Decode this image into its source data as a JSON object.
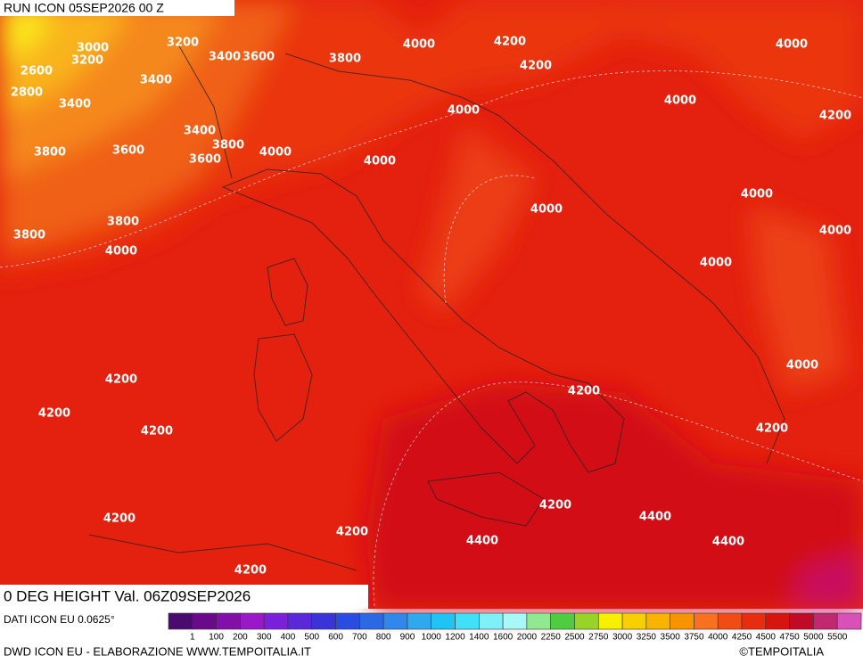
{
  "header": {
    "run": "RUN ICON 05SEP2026 00 Z"
  },
  "map": {
    "title": "0 DEG HEIGHT Val. 06Z09SEP2026",
    "contour_labels": [
      "3000",
      "3200",
      "2600",
      "3200",
      "3400",
      "3600",
      "3400",
      "2800",
      "3400",
      "3400",
      "3800",
      "3800",
      "3600",
      "3600",
      "4000",
      "3800",
      "4000",
      "4200",
      "4200",
      "4000",
      "4000",
      "4200",
      "4000",
      "4000",
      "3800",
      "3800",
      "4000",
      "4000",
      "4000",
      "4000",
      "4000",
      "4000",
      "4200",
      "4200",
      "4200",
      "4200",
      "4200",
      "4200",
      "4400",
      "4200",
      "4200",
      "4400",
      "4400",
      "4200"
    ]
  },
  "legend": {
    "source": "DATI ICON EU 0.0625°",
    "colors": [
      "#4b0a6e",
      "#6a0a8a",
      "#8010a8",
      "#9a18c8",
      "#7a20d8",
      "#5a28d8",
      "#3a34d8",
      "#2a4ce0",
      "#2a68e4",
      "#3088ec",
      "#30a8f0",
      "#20c4f4",
      "#40e0f8",
      "#80f0f8",
      "#a8f8f8",
      "#90e890",
      "#50cc40",
      "#98d428",
      "#f8f000",
      "#f8d000",
      "#f8b400",
      "#f89400",
      "#f87020",
      "#f04c14",
      "#e82c10",
      "#d81410",
      "#c00a28",
      "#c02870",
      "#d850b8"
    ],
    "labels": [
      "1",
      "100",
      "200",
      "300",
      "400",
      "500",
      "600",
      "700",
      "800",
      "900",
      "1000",
      "1200",
      "1400",
      "1600",
      "2000",
      "2250",
      "2500",
      "2750",
      "3000",
      "3250",
      "3500",
      "3750",
      "4000",
      "4250",
      "4500",
      "4750",
      "5000",
      "5500"
    ]
  },
  "footer": {
    "credit": "DWD ICON EU - ELABORAZIONE WWW.TEMPOITALIA.IT",
    "copyright": "©TEMPOITALIA"
  }
}
